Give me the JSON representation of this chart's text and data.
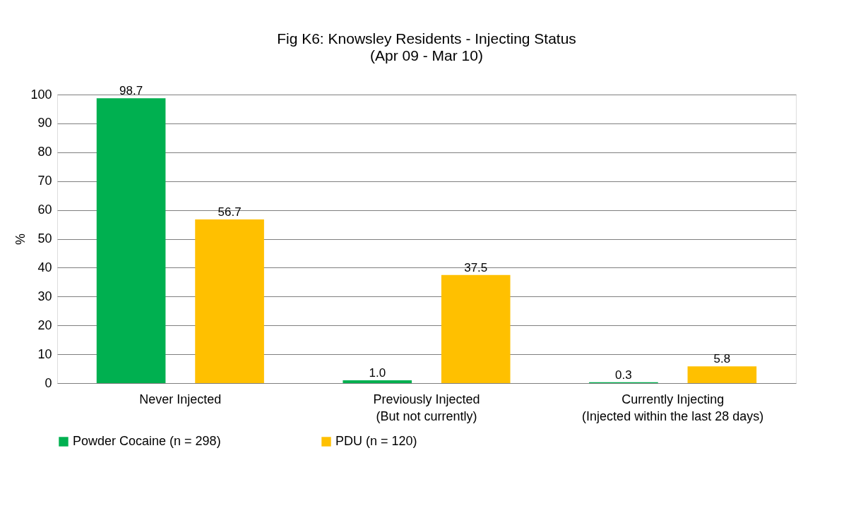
{
  "chart_data": {
    "type": "bar",
    "title": "Fig K6: Knowsley Residents - Injecting Status",
    "subtitle": "(Apr 09 - Mar 10)",
    "ylabel": "%",
    "categories": [
      "Never Injected",
      "Previously Injected\n(But not currently)",
      "Currently Injecting\n(Injected within the last 28 days)"
    ],
    "series": [
      {
        "name": "Powder Cocaine (n = 298)",
        "color": "#00b050",
        "values": [
          98.7,
          1.0,
          0.3
        ],
        "value_labels": [
          "98.7",
          "1.0",
          "0.3"
        ]
      },
      {
        "name": "PDU (n = 120)",
        "color": "#ffc000",
        "values": [
          56.7,
          37.5,
          5.8
        ],
        "value_labels": [
          "56.7",
          "37.5",
          "5.8"
        ]
      }
    ],
    "ylim": [
      0,
      100
    ],
    "yticks": [
      0,
      10,
      20,
      30,
      40,
      50,
      60,
      70,
      80,
      90,
      100
    ],
    "grid": "y",
    "legend": "bottom"
  }
}
